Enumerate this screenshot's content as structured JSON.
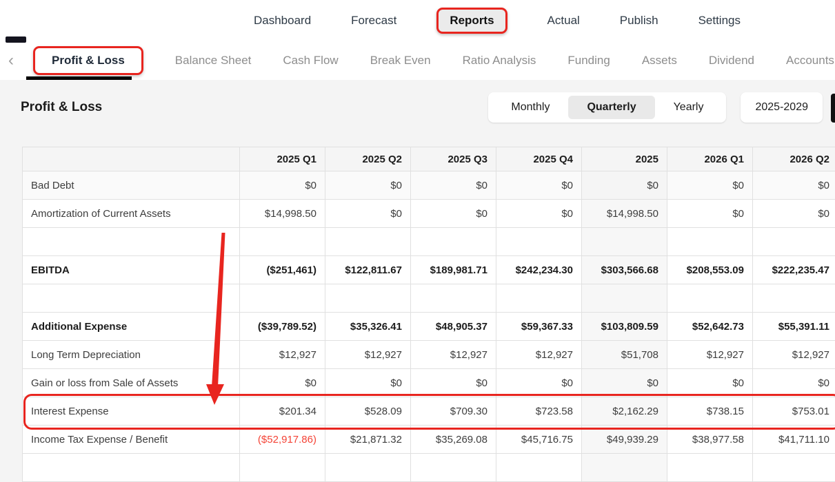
{
  "nav": {
    "items": [
      "Dashboard",
      "Forecast",
      "Reports",
      "Actual",
      "Publish",
      "Settings"
    ],
    "active_item": "Reports"
  },
  "report_tabs": {
    "back_chevron": "‹",
    "items": [
      "Profit & Loss",
      "Balance Sheet",
      "Cash Flow",
      "Break Even",
      "Ratio Analysis",
      "Funding",
      "Assets",
      "Dividend",
      "Accounts"
    ],
    "active_item": "Profit & Loss"
  },
  "page": {
    "title": "Profit & Loss"
  },
  "toolbar": {
    "period_toggle": {
      "options": [
        "Monthly",
        "Quarterly",
        "Yearly"
      ],
      "selected": "Quarterly"
    },
    "year_range_button": "2025-2029"
  },
  "table": {
    "columns": [
      "",
      "2025 Q1",
      "2025 Q2",
      "2025 Q3",
      "2025 Q4",
      "2025",
      "2026 Q1",
      "2026 Q2"
    ],
    "rows": [
      {
        "label": "Bad Debt",
        "shaded": true,
        "values": [
          "$0",
          "$0",
          "$0",
          "$0",
          "$0",
          "$0",
          "$0"
        ]
      },
      {
        "label": "Amortization of Current Assets",
        "values": [
          "$14,998.50",
          "$0",
          "$0",
          "$0",
          "$14,998.50",
          "$0",
          "$0"
        ]
      },
      {
        "label": "",
        "blank": true,
        "values": [
          "",
          "",
          "",
          "",
          "",
          "",
          ""
        ]
      },
      {
        "label": "EBITDA",
        "bold": true,
        "values": [
          "($251,461)",
          "$122,811.67",
          "$189,981.71",
          "$242,234.30",
          "$303,566.68",
          "$208,553.09",
          "$222,235.47"
        ]
      },
      {
        "label": "",
        "blank": true,
        "values": [
          "",
          "",
          "",
          "",
          "",
          "",
          ""
        ]
      },
      {
        "label": "Additional Expense",
        "bold": true,
        "values": [
          "($39,789.52)",
          "$35,326.41",
          "$48,905.37",
          "$59,367.33",
          "$103,809.59",
          "$52,642.73",
          "$55,391.11"
        ]
      },
      {
        "label": "Long Term Depreciation",
        "values": [
          "$12,927",
          "$12,927",
          "$12,927",
          "$12,927",
          "$51,708",
          "$12,927",
          "$12,927"
        ]
      },
      {
        "label": "Gain or loss from Sale of Assets",
        "values": [
          "$0",
          "$0",
          "$0",
          "$0",
          "$0",
          "$0",
          "$0"
        ]
      },
      {
        "label": "Interest Expense",
        "highlighted": true,
        "values": [
          "$201.34",
          "$528.09",
          "$709.30",
          "$723.58",
          "$2,162.29",
          "$738.15",
          "$753.01"
        ]
      },
      {
        "label": "Income Tax Expense / Benefit",
        "values": [
          "($52,917.86)",
          "$21,871.32",
          "$35,269.08",
          "$45,716.75",
          "$49,939.29",
          "$38,977.58",
          "$41,711.10"
        ]
      },
      {
        "label": "",
        "blank": true,
        "values": [
          "",
          "",
          "",
          "",
          "",
          "",
          ""
        ]
      }
    ]
  },
  "annotations": {
    "color": "#e8251f",
    "boxed_nav_item": "Reports",
    "boxed_tab": "Profit & Loss",
    "boxed_row": "Interest Expense",
    "arrow_points_to": "Interest Expense"
  }
}
